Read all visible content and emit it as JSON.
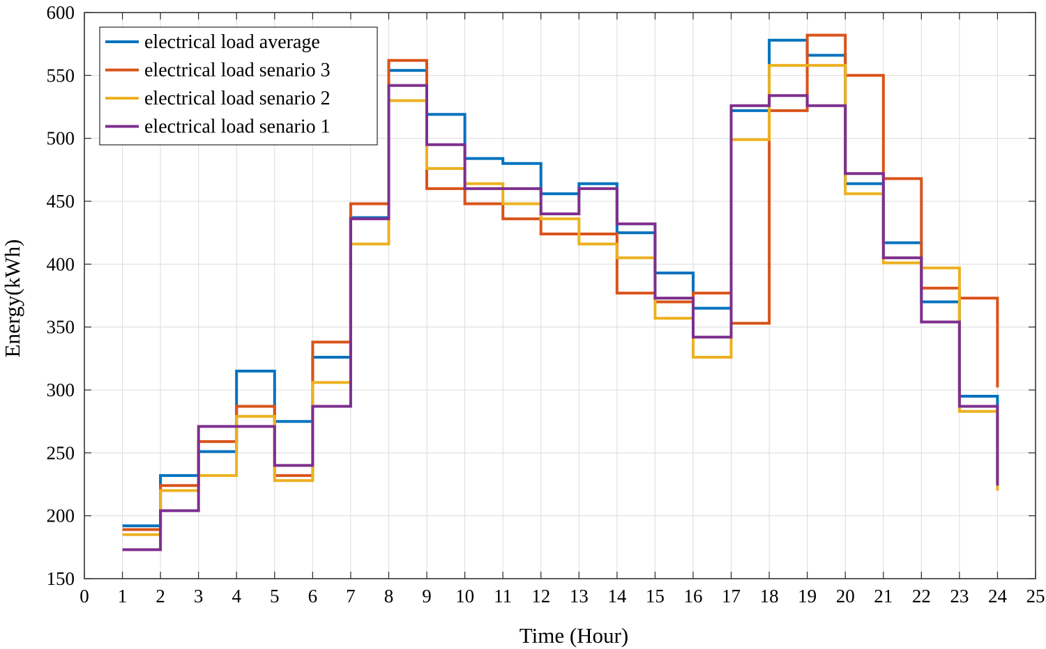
{
  "chart_data": {
    "type": "line",
    "step": true,
    "title": "",
    "xlabel": "Time (Hour)",
    "ylabel": "Energy(kWh)",
    "xlim": [
      0,
      25
    ],
    "ylim": [
      150,
      600
    ],
    "xticks": [
      0,
      1,
      2,
      3,
      4,
      5,
      6,
      7,
      8,
      9,
      10,
      11,
      12,
      13,
      14,
      15,
      16,
      17,
      18,
      19,
      20,
      21,
      22,
      23,
      24,
      25
    ],
    "yticks": [
      150,
      200,
      250,
      300,
      350,
      400,
      450,
      500,
      550,
      600
    ],
    "grid": true,
    "legend_position": "top-left",
    "x": [
      1,
      2,
      3,
      4,
      5,
      6,
      7,
      8,
      9,
      10,
      11,
      12,
      13,
      14,
      15,
      16,
      17,
      18,
      19,
      20,
      21,
      22,
      23,
      24
    ],
    "series": [
      {
        "name": "electrical load average",
        "color": "#0072BD",
        "values": [
          192,
          232,
          251,
          315,
          275,
          326,
          437,
          554,
          519,
          484,
          480,
          456,
          464,
          425,
          393,
          365,
          522,
          578,
          566,
          464,
          417,
          370,
          295,
          228
        ]
      },
      {
        "name": "electrical load senario 3",
        "color": "#D95319",
        "values": [
          189,
          224,
          259,
          287,
          232,
          338,
          448,
          562,
          460,
          448,
          436,
          424,
          424,
          377,
          370,
          377,
          353,
          522,
          582,
          550,
          468,
          381,
          373,
          302
        ]
      },
      {
        "name": "electrical load senario 2",
        "color": "#EDB120",
        "values": [
          185,
          220,
          232,
          279,
          228,
          306,
          416,
          530,
          476,
          464,
          448,
          436,
          416,
          405,
          357,
          326,
          499,
          558,
          558,
          456,
          401,
          397,
          283,
          220
        ]
      },
      {
        "name": "electrical load senario 1",
        "color": "#7E2F8E",
        "values": [
          173,
          204,
          271,
          271,
          240,
          287,
          436,
          542,
          495,
          460,
          460,
          440,
          460,
          432,
          373,
          342,
          526,
          534,
          526,
          472,
          405,
          354,
          287,
          224
        ]
      }
    ]
  }
}
